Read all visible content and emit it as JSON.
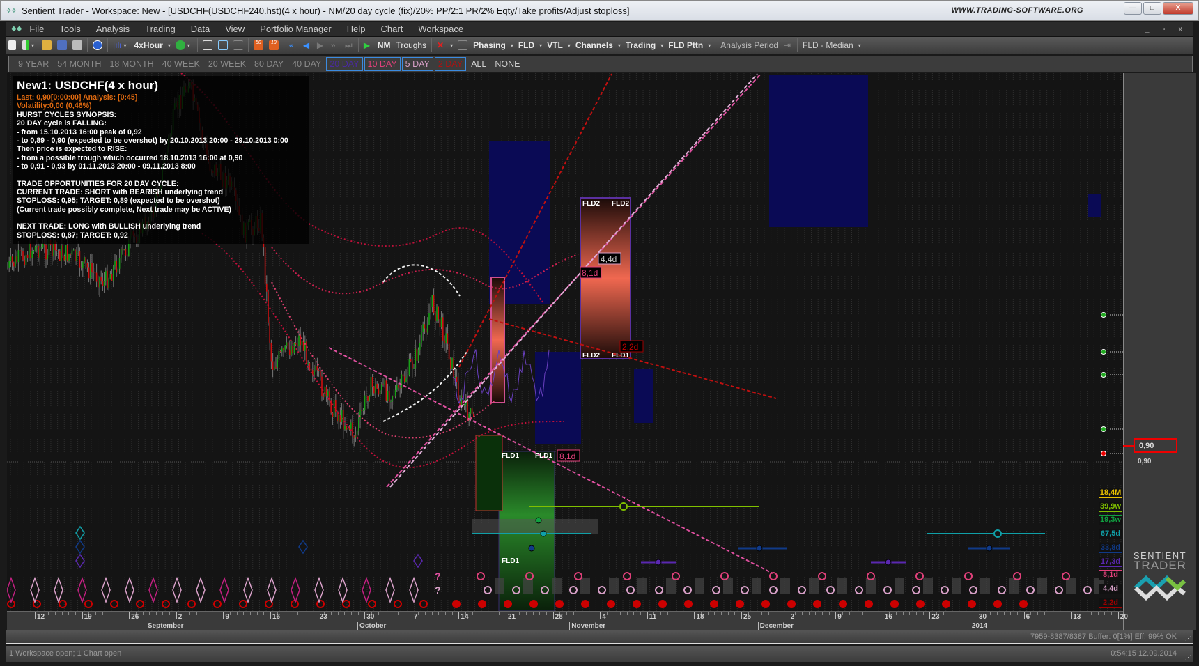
{
  "window": {
    "title": "Sentient Trader - Workspace: New - [USDCHF(USDCHF240.hst)(4 x hour) - NM/20 day cycle (fix)/20% PP/2:1 PR/2% Eqty/Take profits/Adjust stoploss]",
    "website": "WWW.TRADING-SOFTWARE.ORG",
    "minimize": "—",
    "maximize": "□",
    "close": "X"
  },
  "menu": [
    "File",
    "Tools",
    "Analysis",
    "Trading",
    "Data",
    "View",
    "Portfolio Manager",
    "Help",
    "Chart",
    "Workspace"
  ],
  "toolbar": {
    "timeframe": "4xHour",
    "nm": "NM",
    "troughs": "Troughs",
    "phasing": "Phasing",
    "fld": "FLD",
    "vtl": "VTL",
    "channels": "Channels",
    "trading": "Trading",
    "fld_pttn": "FLD Pttn",
    "analysis_period": "Analysis Period",
    "fld_median": "FLD - Median",
    "btn_50": "50",
    "btn_10": "10"
  },
  "cycle_buttons": [
    {
      "label": "9 YEAR",
      "color": "#8a8a8a",
      "selected": false
    },
    {
      "label": "54 MONTH",
      "color": "#8a8a8a",
      "selected": false
    },
    {
      "label": "18 MONTH",
      "color": "#8a8a8a",
      "selected": false
    },
    {
      "label": "40 WEEK",
      "color": "#8a8a8a",
      "selected": false
    },
    {
      "label": "20 WEEK",
      "color": "#8a8a8a",
      "selected": false
    },
    {
      "label": "80 DAY",
      "color": "#8a8a8a",
      "selected": false
    },
    {
      "label": "40 DAY",
      "color": "#8a8a8a",
      "selected": false
    },
    {
      "label": "20 DAY",
      "color": "#4a2aa0",
      "selected": true
    },
    {
      "label": "10 DAY",
      "color": "#e0407a",
      "selected": true
    },
    {
      "label": "5 DAY",
      "color": "#d8a0c8",
      "selected": true
    },
    {
      "label": "2 DAY",
      "color": "#b01010",
      "selected": true
    },
    {
      "label": "ALL",
      "color": "#d0d0d0",
      "selected": false
    },
    {
      "label": "NONE",
      "color": "#d0d0d0",
      "selected": false
    }
  ],
  "info": {
    "heading": "New1: USDCHF(4 x hour)",
    "last": "Last: 0,90[0:00:00] Analysis: [0:45]",
    "volatility": "Volatility:0,00 (0,46%)",
    "lines1": [
      "HURST CYCLES SYNOPSIS:",
      "20 DAY cycle is FALLING:",
      "- from 15.10.2013 16:00 peak of 0,92",
      "- to 0,89 - 0,90 (expected to be overshot) by 20.10.2013 20:00 - 29.10.2013 0:00",
      "Then price is expected to RISE:",
      "- from a possible trough which occurred 18.10.2013 16:00 at 0,90",
      "- to 0,91 - 0,93 by 01.11.2013 20:00 - 09.11.2013 8:00"
    ],
    "lines2": [
      "TRADE OPPORTUNITIES FOR 20 DAY CYCLE:",
      "CURRENT TRADE: SHORT with BEARISH underlying trend",
      "STOPLOSS: 0,95; TARGET: 0,89 (expected to be overshot)",
      "(Current trade possibly complete, Next trade may be ACTIVE)"
    ],
    "lines3": [
      "NEXT TRADE: LONG with BULLISH underlying trend",
      "STOPLOSS: 0,87; TARGET: 0,92"
    ]
  },
  "chart_labels": {
    "fld2_a": "FLD2",
    "fld2_b": "FLD2",
    "fld2_c": "FLD2",
    "fld2_d": "FLD1",
    "fld1_a": "FLD1",
    "fld1_b": "FLD1",
    "fld1_c": "FLD1",
    "lbl_44": "4,4d",
    "lbl_81a": "8,1d",
    "lbl_81b": "8,1d",
    "lbl_22": "2,2d",
    "q1": "?",
    "q2": "?"
  },
  "cycle_labels": [
    {
      "label": "18,4M",
      "color": "#e8c000"
    },
    {
      "label": "39,9w",
      "color": "#80c000"
    },
    {
      "label": "19,3w",
      "color": "#10a040"
    },
    {
      "label": "67,5d",
      "color": "#10a0a8"
    },
    {
      "label": "33,8d",
      "color": "#103a88"
    },
    {
      "label": "17,3d",
      "color": "#5a28b0"
    },
    {
      "label": "8,1d",
      "color": "#e0407a"
    },
    {
      "label": "4,4d",
      "color": "#d8a0c8"
    },
    {
      "label": "2,2d",
      "color": "#a00000"
    }
  ],
  "price": {
    "current": "0,90",
    "axis_label": "0,90",
    "accent": "#e00000"
  },
  "xaxis": {
    "days": [
      "12",
      "19",
      "26",
      "2",
      "9",
      "16",
      "23",
      "30",
      "7",
      "14",
      "21",
      "28",
      "4",
      "11",
      "18",
      "25",
      "2",
      "9",
      "16",
      "23",
      "30",
      "6",
      "13",
      "20"
    ],
    "months": [
      {
        "label": "September",
        "at": 3
      },
      {
        "label": "October",
        "at": 7.5
      },
      {
        "label": "November",
        "at": 12
      },
      {
        "label": "December",
        "at": 16
      },
      {
        "label": "2014",
        "at": 20.5
      }
    ]
  },
  "status": {
    "buffer": "7959-8387/8387  Buffer: 0[1%] Eff: 99% OK",
    "workspace": "1 Workspace open; 1 Chart open",
    "clock": "0:54:15  12.09.2014"
  },
  "brand": {
    "line1": "SENTIENT",
    "line2": "TRADER"
  }
}
